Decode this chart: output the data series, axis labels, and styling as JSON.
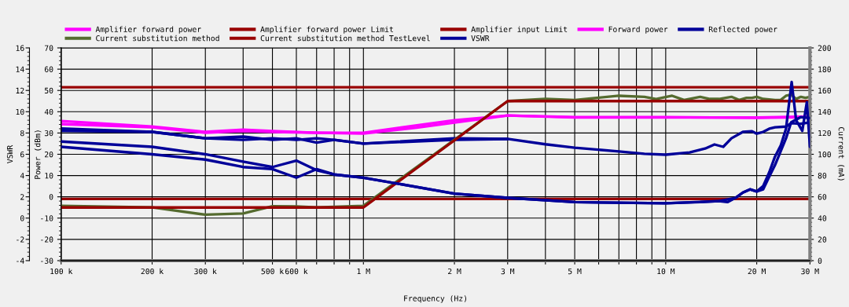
{
  "chart_data": {
    "type": "line",
    "xlabel": "Frequency (Hz)",
    "ylabel": "Power (dBm)",
    "y2label": "Current (mA)",
    "y3label": "VSWR",
    "log": "x",
    "grid": true,
    "legend": "top",
    "line_style": "solid",
    "marker": "none",
    "xlim": [
      100000,
      30000000
    ],
    "xticks": [
      {
        "value": 100000,
        "label": "100 k"
      },
      {
        "value": 200000,
        "label": "200 k"
      },
      {
        "value": 300000,
        "label": "300 k"
      },
      {
        "value": 400000,
        "label": null
      },
      {
        "value": 500000,
        "label": "500 k"
      },
      {
        "value": 600000,
        "label": "600 k"
      },
      {
        "value": 700000,
        "label": null
      },
      {
        "value": 800000,
        "label": null
      },
      {
        "value": 900000,
        "label": null
      },
      {
        "value": 1000000,
        "label": "1 M"
      },
      {
        "value": 2000000,
        "label": "2 M"
      },
      {
        "value": 3000000,
        "label": "3 M"
      },
      {
        "value": 4000000,
        "label": null
      },
      {
        "value": 5000000,
        "label": "5 M"
      },
      {
        "value": 6000000,
        "label": null
      },
      {
        "value": 7000000,
        "label": null
      },
      {
        "value": 8000000,
        "label": null
      },
      {
        "value": 9000000,
        "label": null
      },
      {
        "value": 10000000,
        "label": "10 M"
      },
      {
        "value": 20000000,
        "label": "20 M"
      },
      {
        "value": 30000000,
        "label": "30 M"
      }
    ],
    "ylim": [
      -30,
      70
    ],
    "yticks": [
      -30,
      -20,
      -10,
      0,
      10,
      20,
      30,
      40,
      50,
      60,
      70
    ],
    "y2lim": [
      0,
      200
    ],
    "y2ticks": [
      0,
      20,
      40,
      60,
      80,
      100,
      120,
      140,
      160,
      180,
      200
    ],
    "y3lim": [
      -4,
      16
    ],
    "y3ticks": [
      -4,
      -2,
      0,
      2,
      4,
      6,
      8,
      10,
      12,
      14,
      16
    ],
    "series": [
      {
        "name": "Amplifier forward power",
        "color": "#ff00ff",
        "x": [
          100000,
          200000,
          300000,
          400000,
          500000,
          700000,
          1000000,
          2000000,
          3000000,
          5000000,
          10000000,
          20000000,
          30000000
        ],
        "values": [
          35.6,
          33,
          30.5,
          31.6,
          30.9,
          30.1,
          30.1,
          36,
          38.2,
          37.5,
          37.5,
          37.1,
          37.5
        ]
      },
      {
        "name": "Amplifier forward power Limit",
        "color": "#990000",
        "x": [
          100000,
          30000000
        ],
        "values": [
          51.5,
          51.5
        ]
      },
      {
        "name": "Amplifier input Limit",
        "color": "#990000",
        "x": [
          100000,
          30000000
        ],
        "values": [
          -1,
          -1
        ]
      },
      {
        "name": "Forward power",
        "color": "#ff00ff",
        "x": [
          100000,
          200000,
          300000,
          400000,
          500000,
          1000000,
          1500000,
          2000000,
          3000000,
          5000000,
          10000000,
          20000000,
          30000000
        ],
        "values": [
          34.2,
          32.7,
          30.1,
          30.9,
          30.5,
          29.7,
          32.5,
          34.9,
          38.2,
          37.3,
          37.3,
          37.3,
          37.7
        ]
      },
      {
        "name": "Reflected power",
        "color": "#000099",
        "x": [
          100000,
          200000,
          300000,
          400000,
          500000,
          600000,
          700000,
          800000,
          1000000,
          2000000,
          3000000,
          4000000,
          5000000,
          7000000,
          8500000,
          10000000,
          12000000,
          13500000,
          14500000,
          15500000,
          16500000,
          18000000,
          19300000,
          20000000,
          21000000,
          22000000,
          23000000,
          25000000,
          26000000,
          28000000,
          30000000
        ],
        "values": [
          32.1,
          30.5,
          27.5,
          26.8,
          27.5,
          26.8,
          27.5,
          26.8,
          25,
          26.8,
          27.2,
          24.7,
          23.1,
          21.3,
          20.2,
          19.8,
          20.9,
          22.7,
          24.6,
          23.5,
          27.5,
          30.5,
          30.8,
          29.7,
          30.5,
          32,
          32.7,
          33,
          34.6,
          34.3,
          35
        ]
      },
      {
        "color": "#000099",
        "x": [
          100000,
          200000,
          300000,
          400000,
          500000,
          600000,
          700000,
          800000,
          1000000,
          2000000,
          3000000
        ],
        "values": [
          31,
          30.5,
          27.5,
          28.3,
          26.8,
          27.5,
          25.5,
          26.8,
          25,
          27.5,
          27.2
        ]
      },
      {
        "name": "Current substitution method",
        "color": "#556b2f",
        "axis": "y2",
        "x": [
          100000,
          200000,
          300000,
          400000,
          500000,
          600000,
          700000,
          1000000,
          3000000,
          4000000,
          5000000,
          7000000,
          8500000,
          9300000,
          10500000,
          11500000,
          13000000,
          14000000,
          15000000,
          16500000,
          17500000,
          18500000,
          19300000,
          20000000,
          21000000,
          23000000,
          24000000,
          25000000,
          26000000,
          27000000,
          28000000,
          29000000,
          30000000
        ],
        "values": [
          51.6,
          50,
          43.2,
          44.4,
          51.2,
          51,
          50,
          51.6,
          150,
          152,
          151,
          155,
          154,
          152,
          155,
          151,
          154,
          152,
          152,
          154,
          151,
          153,
          153,
          154,
          152,
          151,
          151,
          155,
          156,
          152,
          154,
          153,
          154
        ]
      },
      {
        "name": "Current substitution method TestLevel",
        "color": "#990000",
        "axis": "y2",
        "x": [
          100000,
          1000000,
          3000000,
          30000000
        ],
        "values": [
          50,
          50,
          150,
          150
        ]
      },
      {
        "name": "VSWR",
        "color": "#000099",
        "axis": "y3",
        "x": [
          100000,
          200000,
          300000,
          400000,
          500000,
          600000,
          700000,
          800000,
          1000000,
          2000000,
          3000000,
          5000000,
          10000000,
          13000000,
          15000000,
          16000000,
          17000000,
          18000000,
          19000000,
          20000000,
          21000000,
          22000000,
          23000000,
          24000000,
          25000000,
          26100000,
          27000000,
          28300000,
          29300000,
          30000000
        ],
        "values": [
          7.2,
          6.7,
          6.0,
          5.3,
          4.8,
          5.4,
          4.5,
          4.1,
          3.8,
          2.3,
          1.9,
          1.5,
          1.4,
          1.5,
          1.6,
          1.5,
          1.9,
          2.4,
          2.7,
          2.5,
          3.0,
          4.3,
          5.8,
          6.8,
          8.4,
          12.8,
          9.2,
          8.2,
          10.9,
          6.7
        ]
      },
      {
        "color": "#000099",
        "axis": "y3",
        "x": [
          100000,
          200000,
          300000,
          400000,
          500000,
          600000,
          700000,
          800000,
          1000000,
          2000000,
          3000000,
          5000000,
          10000000,
          15000000,
          17000000,
          18000000,
          19000000,
          20000000,
          21000000,
          22000000,
          23000000,
          25000000,
          26000000,
          28000000,
          30000000
        ],
        "values": [
          6.7,
          6.0,
          5.5,
          4.8,
          4.6,
          3.8,
          4.6,
          4.1,
          3.8,
          2.3,
          1.9,
          1.5,
          1.4,
          1.6,
          1.9,
          2.4,
          2.7,
          2.5,
          2.7,
          3.9,
          5.0,
          7.5,
          9.0,
          9.5,
          9.4
        ]
      }
    ]
  }
}
